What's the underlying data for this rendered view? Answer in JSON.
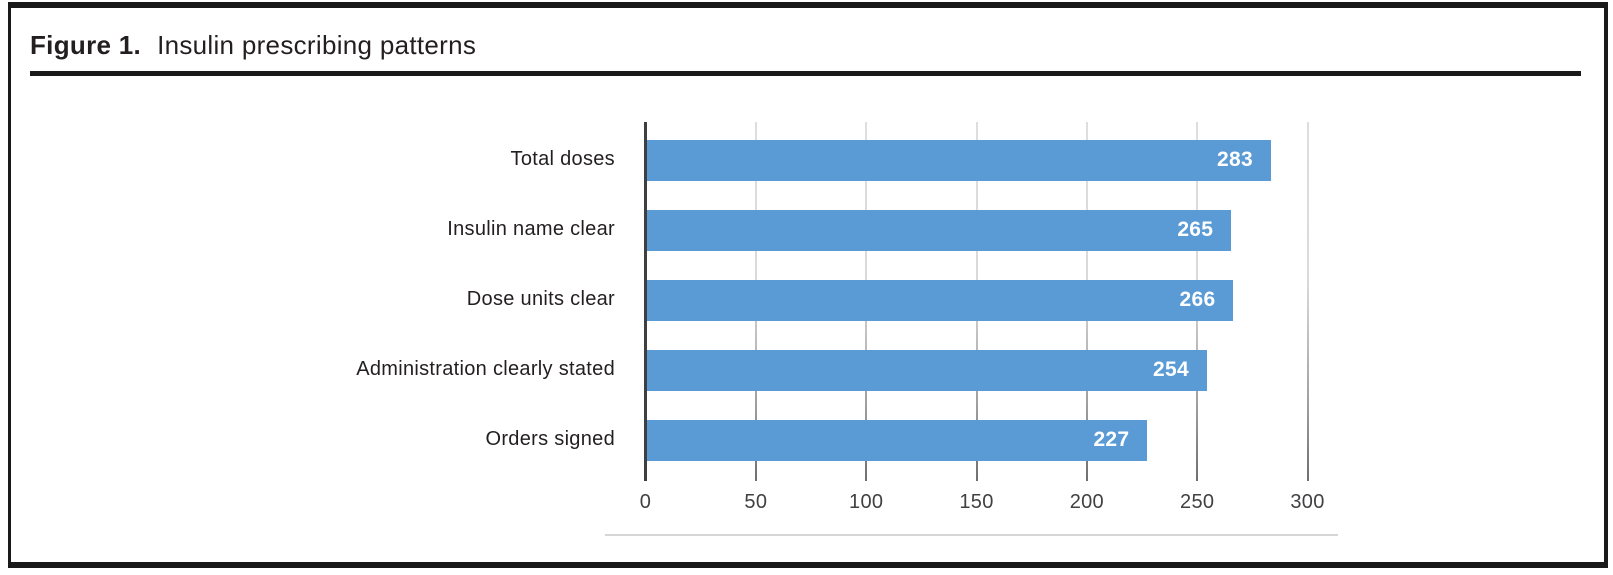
{
  "figure": {
    "label": "Figure 1.",
    "title": "Insulin prescribing patterns"
  },
  "chart_data": {
    "type": "bar",
    "orientation": "horizontal",
    "title": "Figure 1. Insulin prescribing patterns",
    "categories": [
      "Total doses",
      "Insulin name clear",
      "Dose units clear",
      "Administration clearly stated",
      "Orders signed"
    ],
    "values": [
      283,
      265,
      266,
      254,
      227
    ],
    "xlabel": "",
    "ylabel": "",
    "xlim": [
      0,
      300
    ],
    "xticks": [
      0,
      50,
      100,
      150,
      200,
      250,
      300
    ],
    "grid": true,
    "legend": false,
    "value_labels": "inside-end",
    "colors": {
      "bar": "#5B9BD5",
      "value_label": "#FFFFFF",
      "axis": "#3F3F3F",
      "gridline": "#D9D9D9",
      "tick_text": "#414042",
      "category_text": "#231F20"
    }
  }
}
